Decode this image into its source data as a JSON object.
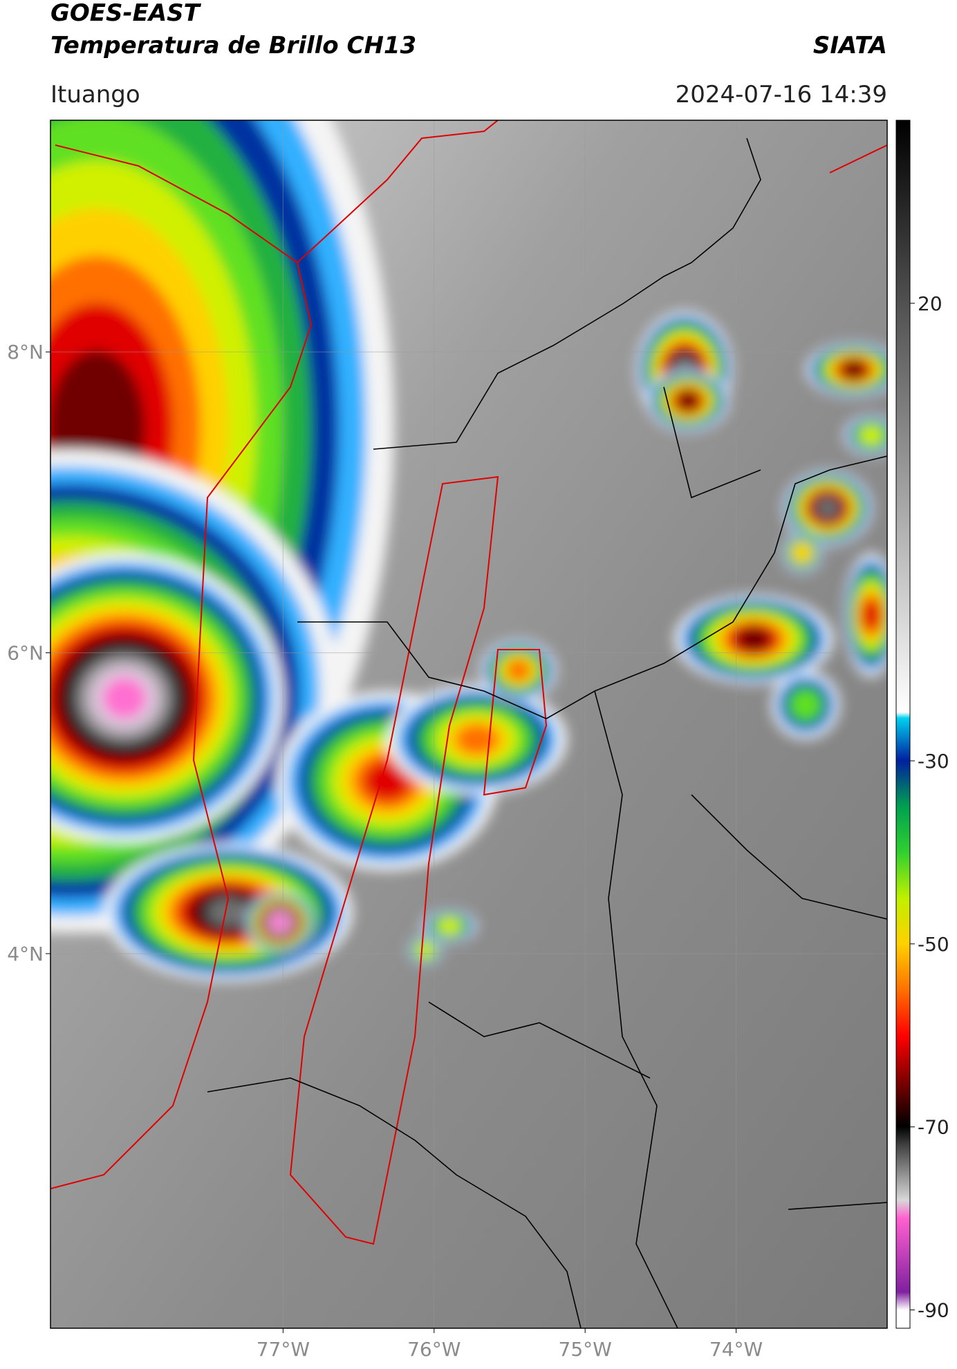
{
  "header": {
    "title": "GOES-EAST",
    "subtitle": "Temperatura de Brillo CH13",
    "source": "SIATA",
    "location": "Ituango",
    "datetime": "2024-07-16 14:39"
  },
  "map": {
    "lat_range": [
      1.51,
      9.54
    ],
    "lon_range": [
      -78.54,
      -73.0
    ],
    "lat_ticks": [
      {
        "value": 8,
        "label": "8°N"
      },
      {
        "value": 6,
        "label": "6°N"
      },
      {
        "value": 4,
        "label": "4°N"
      }
    ],
    "lon_ticks": [
      {
        "value": -77,
        "label": "77°W"
      },
      {
        "value": -76,
        "label": "76°W"
      },
      {
        "value": -75,
        "label": "75°W"
      },
      {
        "value": -74,
        "label": "74°W"
      }
    ],
    "grid": true
  },
  "colorbar": {
    "range": [
      -92,
      40
    ],
    "ticks": [
      20,
      -30,
      -50,
      -70,
      -90
    ]
  }
}
